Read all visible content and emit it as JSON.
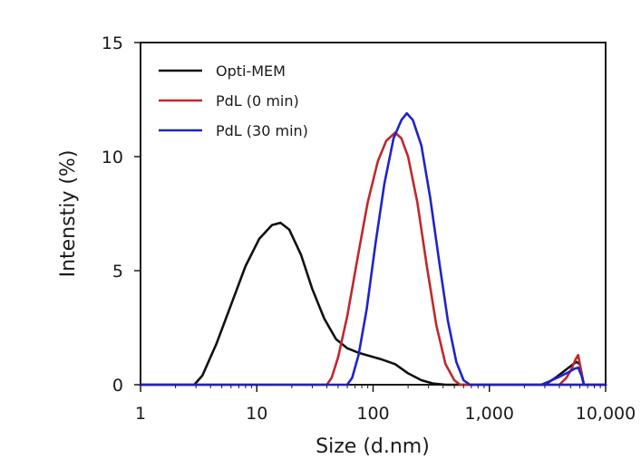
{
  "chart_data": {
    "type": "line",
    "title": "",
    "xlabel": "Size (d.nm)",
    "ylabel": "Intenstiy (%)",
    "xscale": "log",
    "xlim": [
      1,
      10000
    ],
    "ylim": [
      0,
      15
    ],
    "grid": false,
    "legend_position": "top-left",
    "xticks": [
      {
        "value": 1,
        "label": "1"
      },
      {
        "value": 10,
        "label": "10"
      },
      {
        "value": 100,
        "label": "100"
      },
      {
        "value": 1000,
        "label": "1,000"
      },
      {
        "value": 10000,
        "label": "10,000"
      }
    ],
    "yticks": [
      {
        "value": 0,
        "label": "0"
      },
      {
        "value": 5,
        "label": "5"
      },
      {
        "value": 10,
        "label": "10"
      },
      {
        "value": 15,
        "label": "15"
      }
    ],
    "series": [
      {
        "name": "Opti-MEM",
        "color": "#111111",
        "x": [
          1,
          2.9,
          3.4,
          4.5,
          6,
          8,
          10.5,
          13.5,
          16,
          19,
          24,
          30,
          38,
          48,
          60,
          75,
          95,
          120,
          155,
          200,
          260,
          330,
          420,
          530,
          3000,
          3700,
          4400,
          5100,
          5600,
          6000,
          6500,
          10000
        ],
        "y": [
          0,
          0,
          0.4,
          1.8,
          3.5,
          5.2,
          6.4,
          7.0,
          7.1,
          6.8,
          5.7,
          4.2,
          2.9,
          2.0,
          1.6,
          1.4,
          1.25,
          1.1,
          0.9,
          0.5,
          0.2,
          0.05,
          0,
          0,
          0,
          0.3,
          0.6,
          0.85,
          1.0,
          0.9,
          0,
          0
        ]
      },
      {
        "name": "PdL (0 min)",
        "color": "#c0272d",
        "x": [
          1,
          40,
          44,
          50,
          60,
          75,
          90,
          110,
          130,
          155,
          175,
          200,
          240,
          290,
          350,
          420,
          500,
          560,
          10000
        ],
        "y": [
          0,
          0,
          0.3,
          1.2,
          3.0,
          5.8,
          8.0,
          9.8,
          10.7,
          11.05,
          10.8,
          10.0,
          8.0,
          5.2,
          2.6,
          0.9,
          0.2,
          0,
          0
        ],
        "x2": [
          4000,
          4600,
          5100,
          5500,
          5800,
          6100,
          6500
        ],
        "y2": [
          0,
          0.3,
          0.7,
          1.1,
          1.3,
          0.7,
          0
        ]
      },
      {
        "name": "PdL (30 min)",
        "color": "#1f23c9",
        "x": [
          1,
          60,
          66,
          75,
          88,
          105,
          125,
          150,
          175,
          195,
          220,
          260,
          310,
          370,
          440,
          520,
          600,
          680,
          10000
        ],
        "y": [
          0,
          0,
          0.3,
          1.3,
          3.3,
          6.2,
          8.8,
          10.8,
          11.6,
          11.9,
          11.6,
          10.5,
          8.2,
          5.4,
          2.8,
          1.0,
          0.2,
          0,
          0
        ],
        "x2": [
          2800,
          3300,
          4000,
          4800,
          5400,
          5800,
          6200,
          6500
        ],
        "y2": [
          0,
          0.15,
          0.35,
          0.55,
          0.7,
          0.75,
          0.4,
          0
        ]
      }
    ]
  }
}
